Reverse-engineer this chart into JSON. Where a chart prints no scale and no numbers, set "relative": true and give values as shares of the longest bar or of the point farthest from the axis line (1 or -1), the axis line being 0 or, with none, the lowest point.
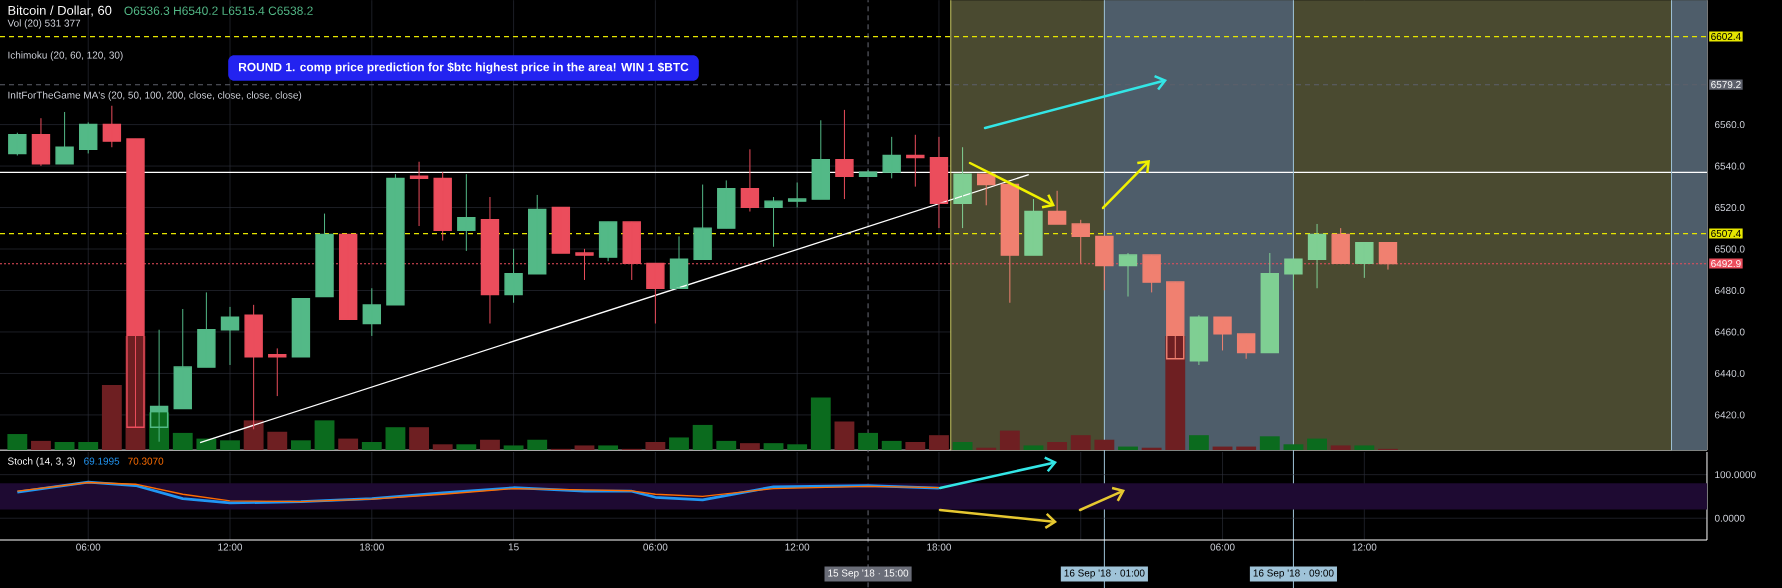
{
  "chart_data": [
    {
      "type": "candlestick",
      "title": "Bitcoin / Dollar, 60",
      "annotations": [
        "O6536.3  H6540.2  L6515.4  C6538.2",
        "Vol (20)  531  377",
        "Ichimoku (20, 60, 120, 30)",
        "InItForTheGame MA's (20, 50, 100, 200, close, close, close, close)",
        "ROUND 1.   comp price prediction for $btc highest price in the area! WIN 1 $BTC"
      ],
      "x": [
        "2018-09-14T03:00",
        "2018-09-14T04:00",
        "2018-09-14T05:00",
        "2018-09-14T06:00",
        "2018-09-14T07:00",
        "2018-09-14T08:00",
        "2018-09-14T09:00",
        "2018-09-14T10:00",
        "2018-09-14T11:00",
        "2018-09-14T12:00",
        "2018-09-14T13:00",
        "2018-09-14T14:00",
        "2018-09-14T15:00",
        "2018-09-14T16:00",
        "2018-09-14T17:00",
        "2018-09-14T18:00",
        "2018-09-14T19:00",
        "2018-09-14T20:00",
        "2018-09-14T21:00",
        "2018-09-14T22:00",
        "2018-09-14T23:00",
        "2018-09-15T00:00",
        "2018-09-15T01:00",
        "2018-09-15T02:00",
        "2018-09-15T03:00",
        "2018-09-15T04:00",
        "2018-09-15T05:00",
        "2018-09-15T06:00",
        "2018-09-15T07:00",
        "2018-09-15T08:00",
        "2018-09-15T09:00",
        "2018-09-15T10:00",
        "2018-09-15T11:00",
        "2018-09-15T12:00",
        "2018-09-15T13:00",
        "2018-09-15T14:00",
        "2018-09-15T15:00",
        "2018-09-15T16:00",
        "2018-09-15T17:00",
        "2018-09-15T18:00",
        "2018-09-15T19:00",
        "2018-09-15T20:00",
        "2018-09-15T21:00",
        "2018-09-15T22:00",
        "2018-09-15T23:00",
        "2018-09-16T00:00",
        "2018-09-16T01:00",
        "2018-09-16T02:00",
        "2018-09-16T03:00",
        "2018-09-16T04:00",
        "2018-09-16T05:00",
        "2018-09-16T06:00",
        "2018-09-16T07:00",
        "2018-09-16T08:00",
        "2018-09-16T09:00",
        "2018-09-16T10:00",
        "2018-09-16T11:00",
        "2018-09-16T12:00",
        "2018-09-16T13:00"
      ],
      "ohlc": [
        [
          6546,
          6556,
          6545,
          6555
        ],
        [
          6555,
          6563,
          6540,
          6541
        ],
        [
          6541,
          6566,
          6541,
          6549
        ],
        [
          6548,
          6561,
          6546,
          6560
        ],
        [
          6560,
          6569,
          6549,
          6552
        ],
        [
          6553,
          6553,
          6414,
          6414
        ],
        [
          6414,
          6461,
          6407,
          6424
        ],
        [
          6423,
          6471,
          6423,
          6443
        ],
        [
          6443,
          6479,
          6443,
          6461
        ],
        [
          6461,
          6472,
          6444,
          6467
        ],
        [
          6468,
          6473,
          6413,
          6448
        ],
        [
          6449,
          6452,
          6429,
          6448
        ],
        [
          6448,
          6476,
          6448,
          6476
        ],
        [
          6477,
          6517,
          6477,
          6507
        ],
        [
          6507,
          6507,
          6466,
          6466
        ],
        [
          6464,
          6481,
          6458,
          6473
        ],
        [
          6473,
          6536,
          6473,
          6534
        ],
        [
          6535,
          6542,
          6511,
          6534
        ],
        [
          6534,
          6537,
          6504,
          6509
        ],
        [
          6509,
          6536,
          6499,
          6515
        ],
        [
          6514,
          6525,
          6464,
          6478
        ],
        [
          6478,
          6500,
          6474,
          6488
        ],
        [
          6488,
          6526,
          6488,
          6519
        ],
        [
          6520,
          6520,
          6498,
          6498
        ],
        [
          6498,
          6500,
          6485,
          6497
        ],
        [
          6496,
          6513,
          6494,
          6513
        ],
        [
          6513,
          6513,
          6485,
          6493
        ],
        [
          6493,
          6493,
          6464,
          6481
        ],
        [
          6481,
          6506,
          6481,
          6495
        ],
        [
          6495,
          6531,
          6495,
          6510
        ],
        [
          6510,
          6533,
          6510,
          6529
        ],
        [
          6529,
          6548,
          6518,
          6520
        ],
        [
          6520,
          6525,
          6501,
          6523
        ],
        [
          6523,
          6532,
          6520,
          6524
        ],
        [
          6524,
          6562,
          6524,
          6543
        ],
        [
          6543,
          6567,
          6524,
          6535
        ],
        [
          6535,
          6538,
          6535,
          6537
        ],
        [
          6537,
          6554,
          6534,
          6545
        ],
        [
          6545,
          6555,
          6530,
          6544
        ],
        [
          6544,
          6554,
          6510,
          6522
        ],
        [
          6522,
          6549,
          6510,
          6536
        ],
        [
          6536,
          6536,
          6521,
          6531
        ],
        [
          6531,
          6531,
          6474,
          6497
        ],
        [
          6497,
          6524,
          6497,
          6518
        ],
        [
          6518,
          6528,
          6512,
          6512
        ],
        [
          6512,
          6514,
          6493,
          6506
        ],
        [
          6506,
          6506,
          6480,
          6492
        ],
        [
          6492,
          6498,
          6477,
          6497
        ],
        [
          6497,
          6497,
          6479,
          6484
        ],
        [
          6484,
          6484,
          6447,
          6447
        ],
        [
          6446,
          6468,
          6444,
          6467
        ],
        [
          6467,
          6467,
          6451,
          6459
        ],
        [
          6459,
          6459,
          6447,
          6450
        ],
        [
          6450,
          6498,
          6450,
          6488
        ],
        [
          6488,
          6495,
          6480,
          6495
        ],
        [
          6495,
          6512,
          6481,
          6507
        ],
        [
          6507,
          6510,
          6493,
          6493
        ],
        [
          6493,
          6503,
          6486,
          6503
        ],
        [
          6503,
          6503,
          6490,
          6492.9
        ]
      ],
      "colors": [
        "#53b987",
        "#eb4d5c",
        "#53b987",
        "#53b987",
        "#eb4d5c",
        "#eb4d5c",
        "#53b987",
        "#53b987",
        "#53b987",
        "#53b987",
        "#eb4d5c",
        "#eb4d5c",
        "#53b987",
        "#53b987",
        "#eb4d5c",
        "#53b987",
        "#53b987",
        "#eb4d5c",
        "#eb4d5c",
        "#53b987",
        "#eb4d5c",
        "#53b987",
        "#53b987",
        "#eb4d5c",
        "#eb4d5c",
        "#53b987",
        "#eb4d5c",
        "#eb4d5c",
        "#53b987",
        "#53b987",
        "#53b987",
        "#eb4d5c",
        "#53b987",
        "#53b987",
        "#53b987",
        "#eb4d5c",
        "#53b987",
        "#53b987",
        "#eb4d5c",
        "#eb4d5c",
        "#7fcf93",
        "#f08070",
        "#f08070",
        "#7fcf93",
        "#f08070",
        "#f08070",
        "#f08070",
        "#7fcf93",
        "#f08070",
        "#f08070",
        "#7fcf93",
        "#f08070",
        "#f08070",
        "#7fcf93",
        "#7fcf93",
        "#7fcf93",
        "#f08070",
        "#7fcf93",
        "#f08070"
      ],
      "series": [
        {
          "type": "line",
          "color": "#ffffff",
          "x": [
            "2018-09-14T10:44",
            "2018-09-15T21:48"
          ],
          "values": [
            6406.6,
            6535.8
          ]
        }
      ],
      "xlim": [
        "2018-09-14T02:16",
        "2018-09-17T02:30"
      ],
      "ylim": [
        6403,
        6620
      ],
      "xticks": [
        {
          "value": "2018-09-14T06:00",
          "label": null
        },
        {
          "value": "2018-09-14T12:00",
          "label": null
        },
        {
          "value": "2018-09-14T18:00",
          "label": null
        },
        {
          "value": "2018-09-15T00:00",
          "label": null
        },
        {
          "value": "2018-09-15T06:00",
          "label": null
        },
        {
          "value": "2018-09-15T12:00",
          "label": null
        },
        {
          "value": "2018-09-15T18:00",
          "label": null
        },
        {
          "value": "2018-09-16T00:00",
          "label": null
        },
        {
          "value": "2018-09-16T06:00",
          "label": null
        },
        {
          "value": "2018-09-16T12:00",
          "label": null
        }
      ],
      "yticks": [
        {
          "value": 6420,
          "label": "6420.0"
        },
        {
          "value": 6440,
          "label": "6440.0"
        },
        {
          "value": 6460,
          "label": "6460.0"
        },
        {
          "value": 6480,
          "label": "6480.0"
        },
        {
          "value": 6500,
          "label": "6500.0"
        },
        {
          "value": 6520,
          "label": "6520.0"
        },
        {
          "value": 6540,
          "label": "6540.0"
        },
        {
          "value": 6560,
          "label": "6560.0"
        }
      ],
      "tick_labels": "y",
      "grid": true,
      "bands": [
        {
          "axis": "x",
          "from": "2018-09-15T18:30",
          "to": "2018-09-17T02:30",
          "color": "#4a4a30"
        },
        {
          "axis": "x",
          "from": "2018-09-16T01:00",
          "to": "2018-09-16T09:00",
          "color": "#4e5d6a"
        },
        {
          "axis": "x",
          "from": "2018-09-17T01:00",
          "to": "2018-09-17T02:30",
          "color": "#4e5d6a"
        }
      ],
      "ref_lines": [
        {
          "axis": "y",
          "value": 6602.4,
          "label": "6602.4",
          "color": "#e6e600",
          "line_style": "dashed"
        },
        {
          "axis": "y",
          "value": 6579.2,
          "label": "6579.2",
          "color": "#5d606b",
          "line_style": "dashed"
        },
        {
          "axis": "y",
          "value": 6537,
          "color": "#ffffff",
          "line_style": "solid"
        },
        {
          "axis": "y",
          "value": 6507.4,
          "label": "6507.4",
          "color": "#e6e600",
          "line_style": "dashed"
        },
        {
          "axis": "y",
          "value": 6492.9,
          "label": "6492.9",
          "color": "#eb4d5c",
          "line_style": "dotted"
        },
        {
          "axis": "x",
          "value": "2018-09-15T15:00",
          "label": "15 Sep '18 · 15:00",
          "color": "#6a6d78",
          "line_style": "dashed"
        },
        {
          "axis": "x",
          "value": "2018-09-15T18:30",
          "color": "#c8c864",
          "line_style": "solid"
        },
        {
          "axis": "x",
          "value": "2018-09-16T01:00",
          "label": "16 Sep '18 · 01:00",
          "color": "#9fc3d8",
          "line_style": "solid"
        },
        {
          "axis": "x",
          "value": "2018-09-16T09:00",
          "label": "16 Sep '18 · 09:00",
          "color": "#9fc3d8",
          "line_style": "solid"
        },
        {
          "axis": "x",
          "value": "2018-09-17T01:00",
          "color": "#9fc3d8",
          "line_style": "solid"
        }
      ]
    },
    {
      "type": "bar",
      "relative": true,
      "x": [
        "2018-09-14T03:00",
        "2018-09-14T04:00",
        "2018-09-14T05:00",
        "2018-09-14T06:00",
        "2018-09-14T07:00",
        "2018-09-14T08:00",
        "2018-09-14T09:00",
        "2018-09-14T10:00",
        "2018-09-14T11:00",
        "2018-09-14T12:00",
        "2018-09-14T13:00",
        "2018-09-14T14:00",
        "2018-09-14T15:00",
        "2018-09-14T16:00",
        "2018-09-14T17:00",
        "2018-09-14T18:00",
        "2018-09-14T19:00",
        "2018-09-14T20:00",
        "2018-09-14T21:00",
        "2018-09-14T22:00",
        "2018-09-14T23:00",
        "2018-09-15T00:00",
        "2018-09-15T01:00",
        "2018-09-15T02:00",
        "2018-09-15T03:00",
        "2018-09-15T04:00",
        "2018-09-15T05:00",
        "2018-09-15T06:00",
        "2018-09-15T07:00",
        "2018-09-15T08:00",
        "2018-09-15T09:00",
        "2018-09-15T10:00",
        "2018-09-15T11:00",
        "2018-09-15T12:00",
        "2018-09-15T13:00",
        "2018-09-15T14:00",
        "2018-09-15T15:00",
        "2018-09-15T16:00",
        "2018-09-15T17:00",
        "2018-09-15T18:00",
        "2018-09-15T19:00",
        "2018-09-15T20:00",
        "2018-09-15T21:00",
        "2018-09-15T22:00",
        "2018-09-15T23:00",
        "2018-09-16T00:00",
        "2018-09-16T01:00",
        "2018-09-16T02:00",
        "2018-09-16T03:00",
        "2018-09-16T04:00",
        "2018-09-16T05:00",
        "2018-09-16T06:00",
        "2018-09-16T07:00",
        "2018-09-16T08:00",
        "2018-09-16T09:00",
        "2018-09-16T10:00",
        "2018-09-16T11:00",
        "2018-09-16T12:00",
        "2018-09-16T13:00"
      ],
      "values": [
        0.14,
        0.08,
        0.07,
        0.07,
        0.57,
        1.0,
        0.33,
        0.15,
        0.1,
        0.085,
        0.26,
        0.16,
        0.085,
        0.26,
        0.1,
        0.07,
        0.2,
        0.2,
        0.05,
        0.05,
        0.09,
        0.04,
        0.09,
        0.01,
        0.04,
        0.04,
        0.01,
        0.07,
        0.11,
        0.22,
        0.08,
        0.06,
        0.06,
        0.05,
        0.46,
        0.25,
        0.15,
        0.08,
        0.07,
        0.13,
        0.07,
        0.02,
        0.17,
        0.04,
        0.07,
        0.13,
        0.09,
        0.03,
        0.02,
        1.0,
        0.13,
        0.03,
        0.03,
        0.12,
        0.05,
        0.1,
        0.04,
        0.04,
        0.01
      ],
      "colors": [
        "#0b6b1e",
        "#6e1f22",
        "#0b6b1e",
        "#0b6b1e",
        "#6e1f22",
        "#6e1f22",
        "#0b6b1e",
        "#0b6b1e",
        "#0b6b1e",
        "#0b6b1e",
        "#6e1f22",
        "#6e1f22",
        "#0b6b1e",
        "#0b6b1e",
        "#6e1f22",
        "#0b6b1e",
        "#0b6b1e",
        "#6e1f22",
        "#6e1f22",
        "#0b6b1e",
        "#6e1f22",
        "#0b6b1e",
        "#0b6b1e",
        "#6e1f22",
        "#6e1f22",
        "#0b6b1e",
        "#6e1f22",
        "#6e1f22",
        "#0b6b1e",
        "#0b6b1e",
        "#0b6b1e",
        "#6e1f22",
        "#0b6b1e",
        "#0b6b1e",
        "#0b6b1e",
        "#6e1f22",
        "#0b6b1e",
        "#0b6b1e",
        "#6e1f22",
        "#6e1f22",
        "#0b6b1e",
        "#6e1f22",
        "#6e1f22",
        "#0b6b1e",
        "#6e1f22",
        "#6e1f22",
        "#6e1f22",
        "#0b6b1e",
        "#6e1f22",
        "#6e1f22",
        "#0b6b1e",
        "#6e1f22",
        "#6e1f22",
        "#0b6b1e",
        "#0b6b1e",
        "#0b6b1e",
        "#6e1f22",
        "#0b6b1e",
        "#6e1f22"
      ],
      "xlim": [
        "2018-09-14T02:16",
        "2018-09-17T02:30"
      ]
    },
    {
      "type": "line",
      "title": "Stoch (14, 3, 3)",
      "x": [
        "2018-09-14T03:00",
        "2018-09-14T06:00",
        "2018-09-14T08:00",
        "2018-09-14T10:00",
        "2018-09-14T12:00",
        "2018-09-14T15:00",
        "2018-09-14T18:00",
        "2018-09-14T21:00",
        "2018-09-15T00:00",
        "2018-09-15T03:00",
        "2018-09-15T05:00",
        "2018-09-15T06:00",
        "2018-09-15T08:00",
        "2018-09-15T11:00",
        "2018-09-15T15:00",
        "2018-09-15T18:00"
      ],
      "series": [
        {
          "name": "69.1995",
          "color": "#2196f3",
          "values": [
            60,
            83,
            75,
            45,
            35,
            38,
            45,
            58,
            70,
            62,
            62,
            48,
            42,
            72,
            75,
            69
          ]
        },
        {
          "name": "70.3070",
          "color": "#ff6d00",
          "values": [
            62,
            82,
            78,
            55,
            40,
            38,
            44,
            55,
            68,
            65,
            63,
            55,
            50,
            68,
            73,
            70
          ]
        }
      ],
      "xlim": [
        "2018-09-14T02:16",
        "2018-09-17T02:30"
      ],
      "ylim": [
        -50,
        152
      ],
      "xticks": [
        {
          "value": "2018-09-14T06:00",
          "label": "06:00"
        },
        {
          "value": "2018-09-14T12:00",
          "label": "12:00"
        },
        {
          "value": "2018-09-14T18:00",
          "label": "18:00"
        },
        {
          "value": "2018-09-15T00:00",
          "label": "15"
        },
        {
          "value": "2018-09-15T06:00",
          "label": "06:00"
        },
        {
          "value": "2018-09-15T12:00",
          "label": "12:00"
        },
        {
          "value": "2018-09-15T18:00",
          "label": "18:00"
        },
        {
          "value": "2018-09-16T00:00",
          "label": null
        },
        {
          "value": "2018-09-16T06:00",
          "label": "06:00"
        },
        {
          "value": "2018-09-16T12:00",
          "label": "12:00"
        }
      ],
      "yticks": [
        {
          "value": 0,
          "label": "0.0000"
        },
        {
          "value": 100,
          "label": "100.0000"
        }
      ],
      "grid": true,
      "bands": [
        {
          "axis": "y",
          "from": 20,
          "to": 80,
          "color": "#1e0a32"
        }
      ]
    }
  ]
}
